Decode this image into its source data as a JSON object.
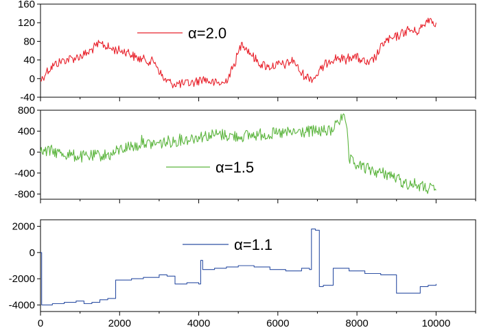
{
  "chart_data": [
    {
      "type": "line",
      "title": "",
      "xlabel": "",
      "ylabel": "",
      "xlim": [
        0,
        11000
      ],
      "ylim": [
        -40,
        160
      ],
      "xticks": [
        0,
        2000,
        4000,
        6000,
        8000,
        10000
      ],
      "yticks": [
        -40,
        0,
        40,
        80,
        120,
        160
      ],
      "ytick_labels": [
        "-40",
        "0",
        "40",
        "80",
        "120",
        "160"
      ],
      "legend_position": "top-center",
      "grid": false,
      "series": [
        {
          "name": "α=2.0",
          "color": "#e8202a",
          "noise": 7,
          "x": [
            0,
            150,
            350,
            600,
            900,
            1200,
            1400,
            1550,
            1750,
            2000,
            2200,
            2400,
            2650,
            2900,
            3100,
            3300,
            3600,
            3900,
            4100,
            4400,
            4650,
            4850,
            5000,
            5100,
            5300,
            5500,
            5750,
            6000,
            6200,
            6400,
            6550,
            6700,
            6900,
            7100,
            7300,
            7500,
            7700,
            7900,
            8100,
            8300,
            8500,
            8700,
            8900,
            9100,
            9300,
            9500,
            9700,
            9800,
            10000
          ],
          "y": [
            -5,
            15,
            30,
            40,
            45,
            55,
            70,
            75,
            65,
            60,
            58,
            45,
            40,
            35,
            0,
            -10,
            -12,
            -8,
            0,
            -10,
            -10,
            20,
            55,
            78,
            55,
            35,
            25,
            30,
            30,
            40,
            15,
            5,
            0,
            20,
            40,
            45,
            40,
            50,
            40,
            30,
            50,
            80,
            85,
            95,
            105,
            100,
            115,
            130,
            120
          ]
        }
      ]
    },
    {
      "type": "line",
      "title": "",
      "xlabel": "",
      "ylabel": "",
      "xlim": [
        0,
        11000
      ],
      "ylim": [
        -900,
        800
      ],
      "xticks": [
        0,
        2000,
        4000,
        6000,
        8000,
        10000
      ],
      "yticks": [
        -800,
        -400,
        0,
        400,
        800
      ],
      "ytick_labels": [
        "-800",
        "-400",
        "0",
        "400",
        "800"
      ],
      "legend_position": "center",
      "grid": false,
      "series": [
        {
          "name": "α=1.5",
          "color": "#5ab43c",
          "noise": 9,
          "x": [
            0,
            300,
            500,
            800,
            1000,
            1300,
            1500,
            1800,
            2000,
            2200,
            2500,
            2600,
            2650,
            3000,
            3500,
            3800,
            4000,
            4300,
            4500,
            4700,
            5000,
            5300,
            5600,
            6000,
            6500,
            7000,
            7400,
            7450,
            7500,
            7700,
            7750,
            7800,
            8000,
            8300,
            8600,
            8800,
            9000,
            9200,
            9500,
            9700,
            10000
          ],
          "y": [
            0,
            20,
            -20,
            -60,
            -90,
            -80,
            -60,
            -50,
            50,
            100,
            130,
            260,
            150,
            170,
            230,
            260,
            300,
            320,
            340,
            320,
            300,
            320,
            340,
            350,
            380,
            400,
            400,
            600,
            610,
            620,
            450,
            -150,
            -250,
            -330,
            -400,
            -420,
            -500,
            -600,
            -620,
            -680,
            -730
          ]
        }
      ]
    },
    {
      "type": "line",
      "title": "",
      "xlabel": "",
      "ylabel": "",
      "xlim": [
        0,
        11000
      ],
      "ylim": [
        -4500,
        2500
      ],
      "xticks": [
        0,
        2000,
        4000,
        6000,
        8000,
        10000
      ],
      "xtick_labels": [
        "0",
        "2000",
        "4000",
        "6000",
        "8000",
        "10000"
      ],
      "yticks": [
        -4000,
        -2000,
        0,
        2000
      ],
      "ytick_labels": [
        "-4000",
        "-2000",
        "0",
        "2000"
      ],
      "legend_position": "top-center",
      "grid": false,
      "series": [
        {
          "name": "α=1.1",
          "color": "#2c4fa3",
          "noise": 0,
          "step": true,
          "x": [
            0,
            30,
            100,
            300,
            600,
            900,
            1100,
            1300,
            1500,
            1700,
            1850,
            1900,
            2300,
            2600,
            3000,
            3200,
            3400,
            3700,
            4000,
            4050,
            4100,
            4400,
            4700,
            5000,
            5400,
            5800,
            6200,
            6600,
            6800,
            6850,
            6950,
            7050,
            7150,
            7400,
            7800,
            8200,
            8600,
            8900,
            9000,
            9400,
            9600,
            9800,
            10000
          ],
          "y": [
            0,
            -4000,
            -4000,
            -3900,
            -3800,
            -3700,
            -3900,
            -3800,
            -3600,
            -3500,
            -3500,
            -2100,
            -2000,
            -1900,
            -1700,
            -1800,
            -2400,
            -2300,
            -2400,
            -600,
            -1300,
            -1200,
            -1100,
            -1000,
            -1100,
            -1300,
            -1400,
            -1200,
            -1300,
            1800,
            1700,
            -2600,
            -2500,
            -1200,
            -1400,
            -1600,
            -1700,
            -1700,
            -3100,
            -3100,
            -2600,
            -2500,
            -2400
          ]
        }
      ]
    }
  ]
}
